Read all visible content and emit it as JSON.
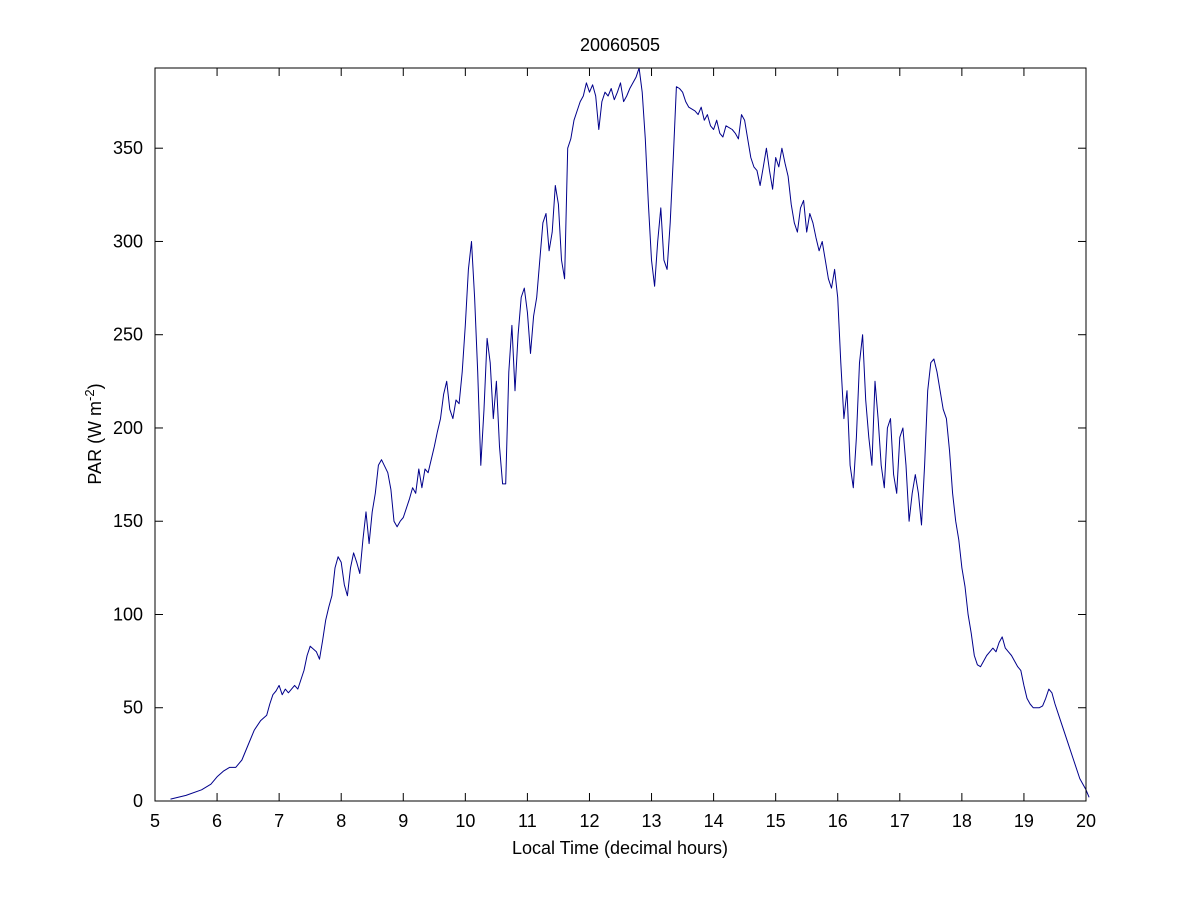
{
  "chart_data": {
    "type": "line",
    "title": "20060505",
    "xlabel": "Local Time (decimal hours)",
    "ylabel": {
      "prefix": "PAR (W m",
      "superscript": "-2",
      "suffix": ")"
    },
    "xlim": [
      5,
      20
    ],
    "ylim": [
      0,
      393
    ],
    "xticks": [
      "5",
      "6",
      "7",
      "8",
      "9",
      "10",
      "11",
      "12",
      "13",
      "14",
      "15",
      "16",
      "17",
      "18",
      "19",
      "20"
    ],
    "yticks": [
      "0",
      "50",
      "100",
      "150",
      "200",
      "250",
      "300",
      "350"
    ],
    "grid": false,
    "series": [
      {
        "color": "#00008b",
        "points": [
          [
            5.25,
            1
          ],
          [
            5.5,
            3
          ],
          [
            5.75,
            6
          ],
          [
            5.9,
            9
          ],
          [
            6.0,
            13
          ],
          [
            6.1,
            16
          ],
          [
            6.2,
            18
          ],
          [
            6.3,
            18
          ],
          [
            6.4,
            22
          ],
          [
            6.5,
            30
          ],
          [
            6.6,
            38
          ],
          [
            6.7,
            43
          ],
          [
            6.8,
            46
          ],
          [
            6.85,
            52
          ],
          [
            6.9,
            57
          ],
          [
            6.95,
            59
          ],
          [
            7.0,
            62
          ],
          [
            7.05,
            57
          ],
          [
            7.1,
            60
          ],
          [
            7.15,
            58
          ],
          [
            7.25,
            62
          ],
          [
            7.3,
            60
          ],
          [
            7.4,
            70
          ],
          [
            7.45,
            78
          ],
          [
            7.5,
            83
          ],
          [
            7.6,
            80
          ],
          [
            7.65,
            76
          ],
          [
            7.7,
            86
          ],
          [
            7.75,
            97
          ],
          [
            7.8,
            104
          ],
          [
            7.85,
            110
          ],
          [
            7.9,
            125
          ],
          [
            7.95,
            131
          ],
          [
            8.0,
            128
          ],
          [
            8.05,
            116
          ],
          [
            8.1,
            110
          ],
          [
            8.15,
            125
          ],
          [
            8.2,
            133
          ],
          [
            8.25,
            128
          ],
          [
            8.3,
            122
          ],
          [
            8.35,
            140
          ],
          [
            8.4,
            155
          ],
          [
            8.45,
            138
          ],
          [
            8.5,
            155
          ],
          [
            8.55,
            165
          ],
          [
            8.6,
            180
          ],
          [
            8.65,
            183
          ],
          [
            8.75,
            176
          ],
          [
            8.8,
            167
          ],
          [
            8.85,
            150
          ],
          [
            8.9,
            147
          ],
          [
            8.95,
            150
          ],
          [
            9.0,
            152
          ],
          [
            9.1,
            162
          ],
          [
            9.15,
            168
          ],
          [
            9.2,
            165
          ],
          [
            9.25,
            178
          ],
          [
            9.3,
            168
          ],
          [
            9.35,
            178
          ],
          [
            9.4,
            176
          ],
          [
            9.5,
            190
          ],
          [
            9.55,
            198
          ],
          [
            9.6,
            205
          ],
          [
            9.65,
            218
          ],
          [
            9.7,
            225
          ],
          [
            9.75,
            210
          ],
          [
            9.8,
            205
          ],
          [
            9.85,
            215
          ],
          [
            9.9,
            213
          ],
          [
            9.95,
            230
          ],
          [
            10.0,
            255
          ],
          [
            10.05,
            285
          ],
          [
            10.1,
            300
          ],
          [
            10.15,
            270
          ],
          [
            10.2,
            230
          ],
          [
            10.25,
            180
          ],
          [
            10.3,
            210
          ],
          [
            10.35,
            248
          ],
          [
            10.4,
            235
          ],
          [
            10.45,
            205
          ],
          [
            10.5,
            225
          ],
          [
            10.55,
            190
          ],
          [
            10.6,
            170
          ],
          [
            10.65,
            170
          ],
          [
            10.7,
            230
          ],
          [
            10.75,
            255
          ],
          [
            10.8,
            220
          ],
          [
            10.85,
            250
          ],
          [
            10.9,
            270
          ],
          [
            10.95,
            275
          ],
          [
            11.0,
            262
          ],
          [
            11.05,
            240
          ],
          [
            11.1,
            260
          ],
          [
            11.15,
            270
          ],
          [
            11.2,
            290
          ],
          [
            11.25,
            310
          ],
          [
            11.3,
            315
          ],
          [
            11.35,
            295
          ],
          [
            11.4,
            305
          ],
          [
            11.45,
            330
          ],
          [
            11.5,
            320
          ],
          [
            11.55,
            290
          ],
          [
            11.6,
            280
          ],
          [
            11.65,
            350
          ],
          [
            11.7,
            355
          ],
          [
            11.75,
            365
          ],
          [
            11.8,
            370
          ],
          [
            11.85,
            375
          ],
          [
            11.9,
            378
          ],
          [
            11.95,
            385
          ],
          [
            12.0,
            380
          ],
          [
            12.05,
            384
          ],
          [
            12.1,
            378
          ],
          [
            12.15,
            360
          ],
          [
            12.2,
            375
          ],
          [
            12.25,
            380
          ],
          [
            12.3,
            378
          ],
          [
            12.35,
            382
          ],
          [
            12.4,
            376
          ],
          [
            12.45,
            380
          ],
          [
            12.5,
            385
          ],
          [
            12.55,
            375
          ],
          [
            12.6,
            378
          ],
          [
            12.65,
            382
          ],
          [
            12.7,
            385
          ],
          [
            12.75,
            388
          ],
          [
            12.8,
            393
          ],
          [
            12.85,
            380
          ],
          [
            12.9,
            355
          ],
          [
            12.95,
            320
          ],
          [
            13.0,
            290
          ],
          [
            13.05,
            276
          ],
          [
            13.1,
            300
          ],
          [
            13.15,
            318
          ],
          [
            13.2,
            290
          ],
          [
            13.25,
            285
          ],
          [
            13.3,
            310
          ],
          [
            13.35,
            345
          ],
          [
            13.4,
            383
          ],
          [
            13.45,
            382
          ],
          [
            13.5,
            380
          ],
          [
            13.55,
            375
          ],
          [
            13.6,
            372
          ],
          [
            13.7,
            370
          ],
          [
            13.75,
            368
          ],
          [
            13.8,
            372
          ],
          [
            13.85,
            365
          ],
          [
            13.9,
            368
          ],
          [
            13.95,
            362
          ],
          [
            14.0,
            360
          ],
          [
            14.05,
            365
          ],
          [
            14.1,
            358
          ],
          [
            14.15,
            356
          ],
          [
            14.2,
            362
          ],
          [
            14.3,
            360
          ],
          [
            14.35,
            358
          ],
          [
            14.4,
            355
          ],
          [
            14.45,
            368
          ],
          [
            14.5,
            365
          ],
          [
            14.55,
            355
          ],
          [
            14.6,
            345
          ],
          [
            14.65,
            340
          ],
          [
            14.7,
            338
          ],
          [
            14.75,
            330
          ],
          [
            14.8,
            340
          ],
          [
            14.85,
            350
          ],
          [
            14.9,
            338
          ],
          [
            14.95,
            328
          ],
          [
            15.0,
            345
          ],
          [
            15.05,
            340
          ],
          [
            15.1,
            350
          ],
          [
            15.15,
            342
          ],
          [
            15.2,
            335
          ],
          [
            15.25,
            320
          ],
          [
            15.3,
            310
          ],
          [
            15.35,
            305
          ],
          [
            15.4,
            318
          ],
          [
            15.45,
            322
          ],
          [
            15.5,
            305
          ],
          [
            15.55,
            315
          ],
          [
            15.6,
            310
          ],
          [
            15.65,
            302
          ],
          [
            15.7,
            295
          ],
          [
            15.75,
            300
          ],
          [
            15.8,
            290
          ],
          [
            15.85,
            280
          ],
          [
            15.9,
            275
          ],
          [
            15.95,
            285
          ],
          [
            16.0,
            270
          ],
          [
            16.05,
            235
          ],
          [
            16.1,
            205
          ],
          [
            16.15,
            220
          ],
          [
            16.2,
            180
          ],
          [
            16.25,
            168
          ],
          [
            16.3,
            195
          ],
          [
            16.35,
            235
          ],
          [
            16.4,
            250
          ],
          [
            16.45,
            215
          ],
          [
            16.5,
            195
          ],
          [
            16.55,
            180
          ],
          [
            16.6,
            225
          ],
          [
            16.65,
            205
          ],
          [
            16.7,
            180
          ],
          [
            16.75,
            168
          ],
          [
            16.8,
            200
          ],
          [
            16.85,
            205
          ],
          [
            16.9,
            175
          ],
          [
            16.95,
            165
          ],
          [
            17.0,
            195
          ],
          [
            17.05,
            200
          ],
          [
            17.1,
            180
          ],
          [
            17.15,
            150
          ],
          [
            17.2,
            165
          ],
          [
            17.25,
            175
          ],
          [
            17.3,
            165
          ],
          [
            17.35,
            148
          ],
          [
            17.4,
            180
          ],
          [
            17.45,
            220
          ],
          [
            17.5,
            235
          ],
          [
            17.55,
            237
          ],
          [
            17.6,
            230
          ],
          [
            17.65,
            220
          ],
          [
            17.7,
            210
          ],
          [
            17.75,
            205
          ],
          [
            17.8,
            188
          ],
          [
            17.85,
            165
          ],
          [
            17.9,
            150
          ],
          [
            17.95,
            140
          ],
          [
            18.0,
            125
          ],
          [
            18.05,
            115
          ],
          [
            18.1,
            100
          ],
          [
            18.15,
            90
          ],
          [
            18.2,
            78
          ],
          [
            18.25,
            73
          ],
          [
            18.3,
            72
          ],
          [
            18.35,
            75
          ],
          [
            18.4,
            78
          ],
          [
            18.45,
            80
          ],
          [
            18.5,
            82
          ],
          [
            18.55,
            80
          ],
          [
            18.6,
            85
          ],
          [
            18.65,
            88
          ],
          [
            18.7,
            82
          ],
          [
            18.75,
            80
          ],
          [
            18.8,
            78
          ],
          [
            18.85,
            75
          ],
          [
            18.9,
            72
          ],
          [
            18.95,
            70
          ],
          [
            19.0,
            62
          ],
          [
            19.05,
            55
          ],
          [
            19.1,
            52
          ],
          [
            19.15,
            50
          ],
          [
            19.25,
            50
          ],
          [
            19.3,
            51
          ],
          [
            19.35,
            55
          ],
          [
            19.4,
            60
          ],
          [
            19.45,
            58
          ],
          [
            19.5,
            52
          ],
          [
            19.6,
            42
          ],
          [
            19.7,
            32
          ],
          [
            19.8,
            22
          ],
          [
            19.9,
            12
          ],
          [
            20.0,
            6
          ],
          [
            20.05,
            2
          ]
        ]
      }
    ]
  }
}
